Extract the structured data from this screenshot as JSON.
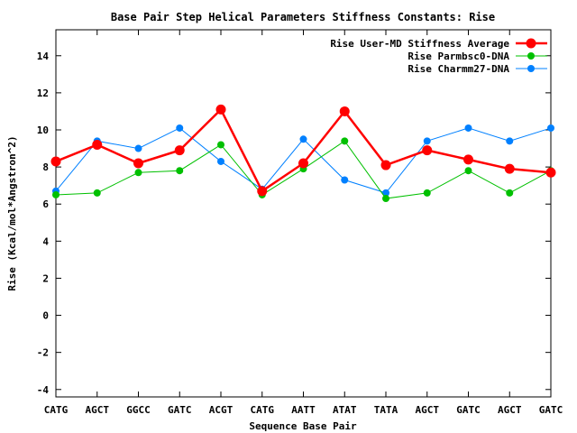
{
  "chart_data": {
    "type": "line",
    "title": "Base Pair Step Helical Parameters Stiffness Constants: Rise",
    "xlabel": "Sequence Base Pair",
    "ylabel": "Rise (Kcal/mol*Angstron^2)",
    "categories": [
      "CATG",
      "AGCT",
      "GGCC",
      "GATC",
      "ACGT",
      "CATG",
      "AATT",
      "ATAT",
      "TATA",
      "AGCT",
      "GATC",
      "AGCT",
      "GATC"
    ],
    "ylim": [
      -4.4,
      15.4
    ],
    "yticks": [
      -4,
      -2,
      0,
      2,
      4,
      6,
      8,
      10,
      12,
      14
    ],
    "grid": false,
    "legend_position": "top-right",
    "series": [
      {
        "name": "Rise User-MD Stiffness Average",
        "color": "#ff0000",
        "values": [
          8.3,
          9.2,
          8.2,
          8.9,
          11.1,
          6.7,
          8.2,
          11.0,
          8.1,
          8.9,
          8.4,
          7.9,
          7.7
        ]
      },
      {
        "name": "Rise Parmbsc0-DNA",
        "color": "#00c000",
        "values": [
          6.5,
          6.6,
          7.7,
          7.8,
          9.2,
          6.5,
          7.9,
          9.4,
          6.3,
          6.6,
          7.8,
          6.6,
          7.8
        ]
      },
      {
        "name": "Rise Charmm27-DNA",
        "color": "#0080ff",
        "values": [
          6.7,
          9.4,
          9.0,
          10.1,
          8.3,
          6.8,
          9.5,
          7.3,
          6.6,
          9.4,
          10.1,
          9.4,
          10.1
        ]
      }
    ]
  }
}
